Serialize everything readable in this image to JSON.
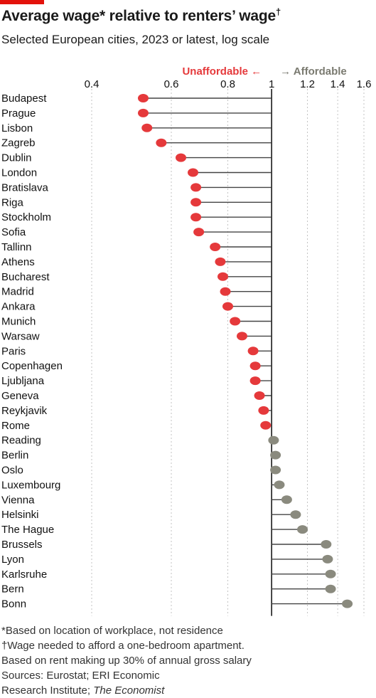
{
  "header": {
    "title": "Average wage* relative to renters’ wage",
    "title_mark": "†",
    "subtitle": "Selected European cities, 2023 or latest, log scale"
  },
  "legend": {
    "unaffordable": "Unaffordable ←",
    "affordable": "→ Affordable"
  },
  "colors": {
    "unaffordable": "#e5393b",
    "affordable": "#8a8a7e",
    "brand": "#e3120b"
  },
  "footnotes": {
    "note1": "*Based on location of workplace, not residence",
    "note2": "†Wage needed to afford a one-bedroom apartment.",
    "note3": "Based on rent making up 30% of annual gross salary",
    "note4": "Sources: Eurostat; ERI Economic",
    "note5_prefix": "Research Institute; ",
    "note5_italic": "The Economist"
  },
  "chart_data": {
    "type": "lollipop",
    "scale": "log",
    "xlim": [
      0.4,
      1.6
    ],
    "ticks": [
      0.4,
      0.6,
      0.8,
      1,
      1.2,
      1.4,
      1.6
    ],
    "tick_labels": [
      "0.4",
      "0.6",
      "0.8",
      "1",
      "1.2",
      "1.4",
      "1.6"
    ],
    "baseline": 1,
    "categories": [
      "Budapest",
      "Prague",
      "Lisbon",
      "Zagreb",
      "Dublin",
      "London",
      "Bratislava",
      "Riga",
      "Stockholm",
      "Sofia",
      "Tallinn",
      "Athens",
      "Bucharest",
      "Madrid",
      "Ankara",
      "Munich",
      "Warsaw",
      "Paris",
      "Copenhagen",
      "Ljubljana",
      "Geneva",
      "Reykjavik",
      "Rome",
      "Reading",
      "Berlin",
      "Oslo",
      "Luxembourg",
      "Vienna",
      "Helsinki",
      "The Hague",
      "Brussels",
      "Lyon",
      "Karlsruhe",
      "Bern",
      "Bonn"
    ],
    "values": [
      0.52,
      0.52,
      0.53,
      0.57,
      0.63,
      0.67,
      0.68,
      0.68,
      0.68,
      0.69,
      0.75,
      0.77,
      0.78,
      0.79,
      0.8,
      0.83,
      0.86,
      0.91,
      0.92,
      0.92,
      0.94,
      0.96,
      0.97,
      1.01,
      1.02,
      1.02,
      1.04,
      1.08,
      1.13,
      1.17,
      1.32,
      1.33,
      1.35,
      1.35,
      1.47
    ]
  }
}
